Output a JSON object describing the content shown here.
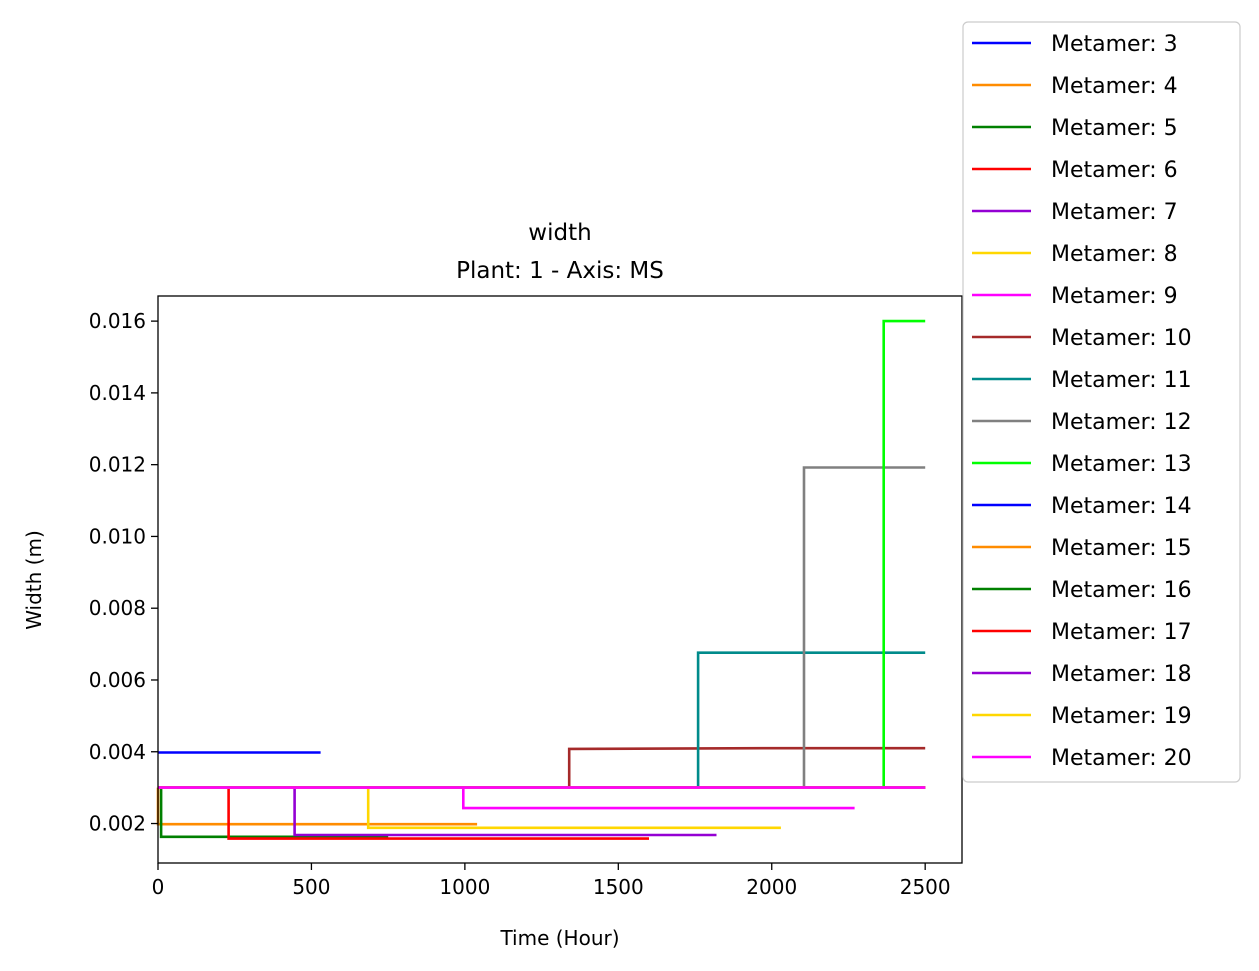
{
  "chart_data": {
    "type": "line",
    "title": "width",
    "subtitle": "Plant: 1 - Axis: MS",
    "xlabel": "Time (Hour)",
    "ylabel": "Width (m)",
    "xlim": [
      0,
      2620
    ],
    "ylim": [
      0.0009,
      0.0167
    ],
    "xticks": [
      0,
      500,
      1000,
      1500,
      2000,
      2500
    ],
    "xtick_labels": [
      "0",
      "500",
      "1000",
      "1500",
      "2000",
      "2500"
    ],
    "yticks": [
      0.002,
      0.004,
      0.006,
      0.008,
      0.01,
      0.012,
      0.014,
      0.016
    ],
    "ytick_labels": [
      "0.002",
      "0.004",
      "0.006",
      "0.008",
      "0.010",
      "0.012",
      "0.014",
      "0.016"
    ],
    "grid": false,
    "legend_position": "outside-right",
    "series": [
      {
        "name": "Metamer: 3",
        "color": "#0000ff",
        "x": [
          0,
          530
        ],
        "y": [
          0.00398,
          0.00398
        ]
      },
      {
        "name": "Metamer: 4",
        "color": "#ff8c00",
        "x": [
          0,
          0,
          1040
        ],
        "y": [
          0.003,
          0.00198,
          0.00198
        ]
      },
      {
        "name": "Metamer: 5",
        "color": "#008000",
        "x": [
          0,
          10,
          10,
          750
        ],
        "y": [
          0.003,
          0.003,
          0.00163,
          0.00163
        ]
      },
      {
        "name": "Metamer: 6",
        "color": "#ff0000",
        "x": [
          0,
          230,
          230,
          1600
        ],
        "y": [
          0.003,
          0.003,
          0.00158,
          0.00158
        ]
      },
      {
        "name": "Metamer: 7",
        "color": "#9400d3",
        "x": [
          0,
          445,
          445,
          1820
        ],
        "y": [
          0.003,
          0.003,
          0.00168,
          0.00168
        ]
      },
      {
        "name": "Metamer: 8",
        "color": "#ffd700",
        "x": [
          0,
          685,
          685,
          2030
        ],
        "y": [
          0.003,
          0.003,
          0.00188,
          0.00188
        ]
      },
      {
        "name": "Metamer: 9",
        "color": "#ff00ff",
        "x": [
          0,
          995,
          995,
          2270
        ],
        "y": [
          0.003,
          0.003,
          0.00243,
          0.00243
        ]
      },
      {
        "name": "Metamer: 10",
        "color": "#a52a2a",
        "x": [
          0,
          1340,
          1340,
          2000,
          2500
        ],
        "y": [
          0.003,
          0.003,
          0.00408,
          0.0041,
          0.0041
        ]
      },
      {
        "name": "Metamer: 11",
        "color": "#008b8b",
        "x": [
          0,
          1760,
          1760,
          2500
        ],
        "y": [
          0.003,
          0.003,
          0.00676,
          0.00676
        ]
      },
      {
        "name": "Metamer: 12",
        "color": "#808080",
        "x": [
          0,
          2105,
          2105,
          2500
        ],
        "y": [
          0.003,
          0.003,
          0.01192,
          0.01192
        ]
      },
      {
        "name": "Metamer: 13",
        "color": "#00ff00",
        "x": [
          0,
          2365,
          2365,
          2500
        ],
        "y": [
          0.003,
          0.003,
          0.016,
          0.016
        ]
      },
      {
        "name": "Metamer: 14",
        "color": "#0000ff",
        "x": [
          0,
          2500
        ],
        "y": [
          0.003,
          0.003
        ]
      },
      {
        "name": "Metamer: 15",
        "color": "#ff8c00",
        "x": [
          0,
          2500
        ],
        "y": [
          0.003,
          0.003
        ]
      },
      {
        "name": "Metamer: 16",
        "color": "#008000",
        "x": [
          0,
          2500
        ],
        "y": [
          0.003,
          0.003
        ]
      },
      {
        "name": "Metamer: 17",
        "color": "#ff0000",
        "x": [
          0,
          2500
        ],
        "y": [
          0.003,
          0.003
        ]
      },
      {
        "name": "Metamer: 18",
        "color": "#9400d3",
        "x": [
          0,
          2500
        ],
        "y": [
          0.003,
          0.003
        ]
      },
      {
        "name": "Metamer: 19",
        "color": "#ffd700",
        "x": [
          0,
          2500
        ],
        "y": [
          0.003,
          0.003
        ]
      },
      {
        "name": "Metamer: 20",
        "color": "#ff00ff",
        "x": [
          0,
          2500
        ],
        "y": [
          0.003,
          0.003
        ]
      }
    ]
  }
}
